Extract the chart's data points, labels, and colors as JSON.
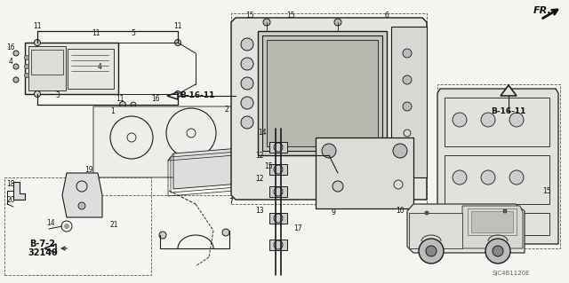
{
  "bg_color": "#f5f5f0",
  "line_color": "#1a1a1a",
  "label_color": "#111111",
  "dashed_color": "#555555",
  "gray_fill": "#e8e8e2",
  "SJC": "SJC4B1120E",
  "FR": "FR.",
  "B1611": "B-16-11",
  "B72": "B-7-2",
  "c32140": "32140"
}
